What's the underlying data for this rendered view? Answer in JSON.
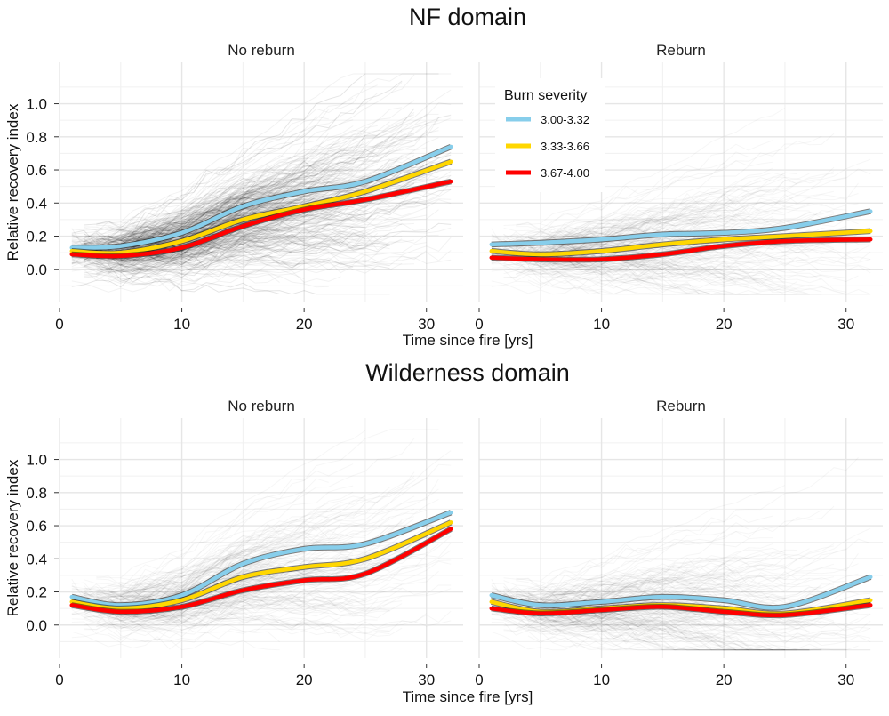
{
  "chart_data": {
    "type": "line",
    "legend": {
      "title": "Burn severity",
      "placement": "inside-top-left of top-right panel",
      "entries": [
        {
          "label": "3.00-3.32",
          "color": "#87CEEB"
        },
        {
          "label": "3.33-3.66",
          "color": "#FFD700"
        },
        {
          "label": "3.67-4.00",
          "color": "#FF0000"
        }
      ]
    },
    "xlabel": "Time since fire [yrs]",
    "ylabel": "Relative recovery index",
    "xlim": [
      0,
      33
    ],
    "ylim": [
      -0.2,
      1.25
    ],
    "xticks": [
      0,
      10,
      20,
      30
    ],
    "yticks": [
      0.0,
      0.2,
      0.4,
      0.6,
      0.8,
      1.0
    ],
    "sections": [
      {
        "title": "NF domain",
        "panels": [
          {
            "title": "No reburn",
            "x": [
              1,
              5,
              10,
              15,
              20,
              25,
              32
            ],
            "series": [
              {
                "name": "3.00-3.32",
                "values": [
                  0.13,
                  0.14,
                  0.22,
                  0.38,
                  0.47,
                  0.53,
                  0.74
                ]
              },
              {
                "name": "3.33-3.66",
                "values": [
                  0.11,
                  0.1,
                  0.17,
                  0.3,
                  0.38,
                  0.47,
                  0.65
                ]
              },
              {
                "name": "3.67-4.00",
                "values": [
                  0.09,
                  0.08,
                  0.13,
                  0.26,
                  0.36,
                  0.42,
                  0.53
                ]
              }
            ]
          },
          {
            "title": "Reburn",
            "x": [
              1,
              5,
              10,
              15,
              20,
              25,
              32
            ],
            "series": [
              {
                "name": "3.00-3.32",
                "values": [
                  0.15,
                  0.16,
                  0.18,
                  0.21,
                  0.22,
                  0.25,
                  0.35
                ]
              },
              {
                "name": "3.33-3.66",
                "values": [
                  0.11,
                  0.09,
                  0.11,
                  0.15,
                  0.18,
                  0.2,
                  0.23
                ]
              },
              {
                "name": "3.67-4.00",
                "values": [
                  0.07,
                  0.06,
                  0.06,
                  0.09,
                  0.14,
                  0.17,
                  0.18
                ]
              }
            ]
          }
        ]
      },
      {
        "title": "Wilderness domain",
        "panels": [
          {
            "title": "No reburn",
            "x": [
              1,
              5,
              10,
              15,
              20,
              25,
              32
            ],
            "series": [
              {
                "name": "3.00-3.32",
                "values": [
                  0.17,
                  0.12,
                  0.18,
                  0.37,
                  0.46,
                  0.49,
                  0.68
                ]
              },
              {
                "name": "3.33-3.66",
                "values": [
                  0.14,
                  0.1,
                  0.15,
                  0.29,
                  0.35,
                  0.4,
                  0.62
                ]
              },
              {
                "name": "3.67-4.00",
                "values": [
                  0.12,
                  0.08,
                  0.11,
                  0.21,
                  0.27,
                  0.31,
                  0.58
                ]
              }
            ]
          },
          {
            "title": "Reburn",
            "x": [
              1,
              5,
              10,
              15,
              20,
              25,
              32
            ],
            "series": [
              {
                "name": "3.00-3.32",
                "values": [
                  0.18,
                  0.12,
                  0.14,
                  0.17,
                  0.15,
                  0.11,
                  0.29
                ]
              },
              {
                "name": "3.33-3.66",
                "values": [
                  0.14,
                  0.08,
                  0.1,
                  0.12,
                  0.1,
                  0.07,
                  0.15
                ]
              },
              {
                "name": "3.67-4.00",
                "values": [
                  0.1,
                  0.07,
                  0.09,
                  0.11,
                  0.08,
                  0.06,
                  0.12
                ]
              }
            ]
          }
        ]
      }
    ]
  }
}
